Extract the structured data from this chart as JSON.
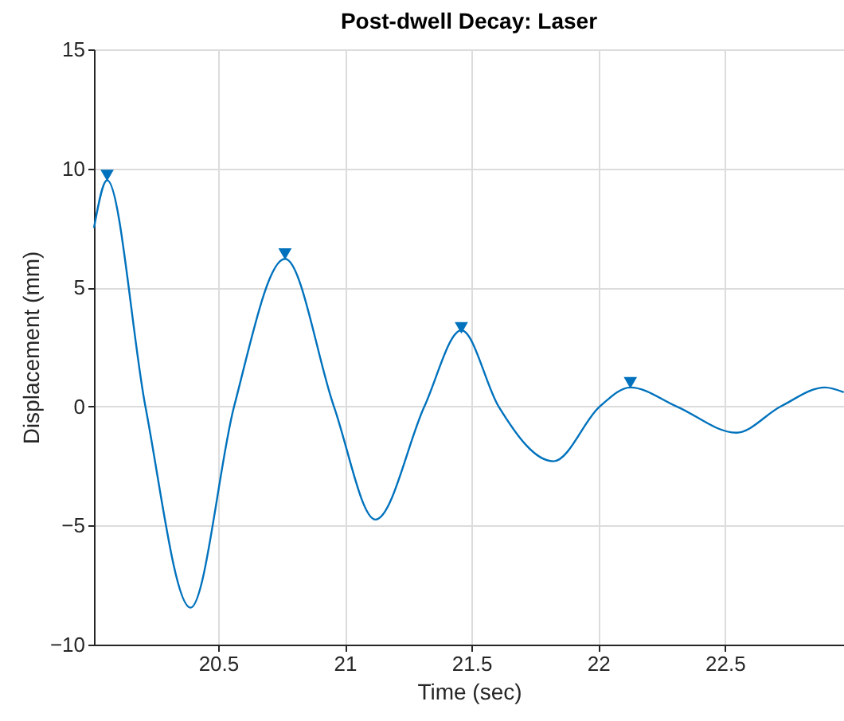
{
  "chart_data": {
    "type": "line",
    "title": "Post-dwell Decay: Laser",
    "xlabel": "Time (sec)",
    "ylabel": "Displacement (mm)",
    "xlim": [
      20.01,
      22.97
    ],
    "ylim": [
      -10,
      15
    ],
    "xticks": [
      20.5,
      21,
      21.5,
      22,
      22.5
    ],
    "yticks": [
      -10,
      -5,
      0,
      5,
      10,
      15
    ],
    "grid": true,
    "series": [
      {
        "type": "line",
        "color": "#0072bd",
        "marker": "none",
        "x": [
          20.01,
          20.062,
          20.213,
          20.391,
          20.563,
          20.764,
          20.957,
          21.121,
          21.314,
          21.46,
          21.607,
          21.823,
          22.006,
          22.127,
          22.31,
          22.545,
          22.72,
          22.895,
          22.969
        ],
        "values": [
          7.5,
          9.5,
          0,
          -8.45,
          0,
          6.2,
          0,
          -4.75,
          0,
          3.2,
          0,
          -2.3,
          0,
          0.8,
          0,
          -1.1,
          0,
          0.8,
          0.6
        ]
      },
      {
        "type": "scatter",
        "color": "#0072bd",
        "marker": "triangle",
        "x": [
          20.062,
          20.764,
          21.46,
          22.127
        ],
        "values": [
          9.7,
          6.4,
          3.3,
          1.0
        ]
      }
    ]
  }
}
